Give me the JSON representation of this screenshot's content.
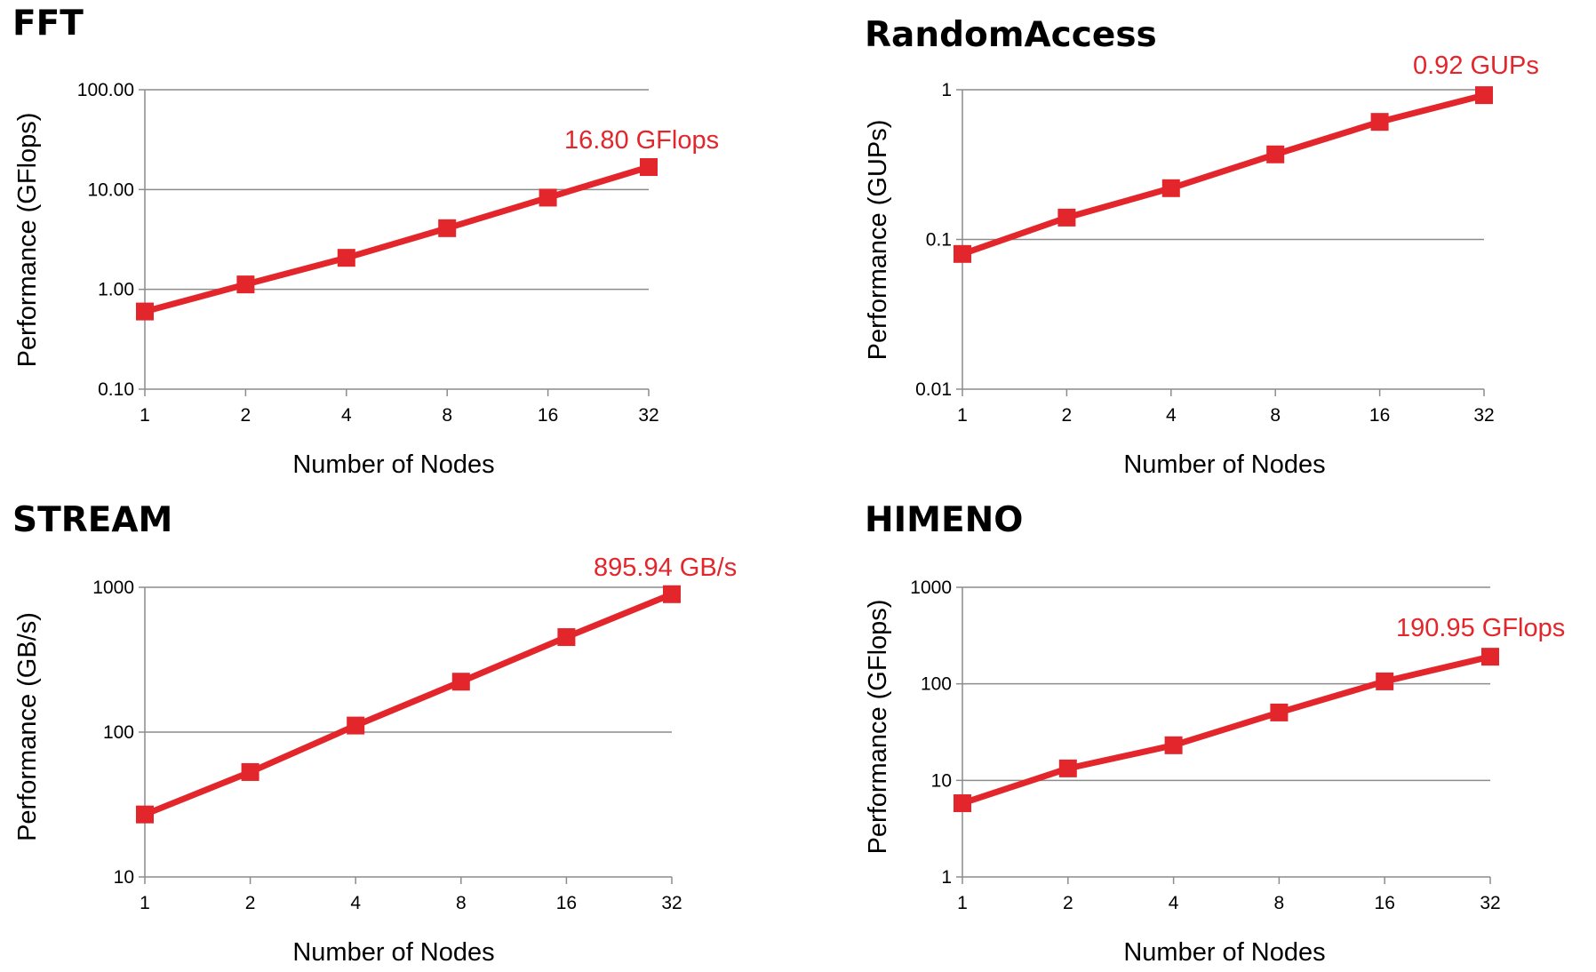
{
  "colors": {
    "series": "#e3262b",
    "grid": "#8c8c8c",
    "axis": "#8c8c8c"
  },
  "chart_data": [
    {
      "type": "line",
      "title": "FFT",
      "xlabel": "Number of Nodes",
      "ylabel": "Performance (GFlops)",
      "yscale": "log",
      "ylim": [
        0.1,
        100
      ],
      "ytick_labels": [
        "0.10",
        "1.00",
        "10.00",
        "100.00"
      ],
      "ytick_values": [
        0.1,
        1,
        10,
        100
      ],
      "x": [
        "1",
        "2",
        "4",
        "8",
        "16",
        "32"
      ],
      "series": [
        {
          "values": [
            0.6,
            1.12,
            2.07,
            4.1,
            8.3,
            16.8
          ]
        }
      ],
      "annotation": "16.80 GFlops",
      "grid": "horizontal"
    },
    {
      "type": "line",
      "title": "RandomAccess",
      "xlabel": "Number of Nodes",
      "ylabel": "Performance (GUPs)",
      "yscale": "log",
      "ylim": [
        0.01,
        1
      ],
      "ytick_labels": [
        "0.01",
        "0.1",
        "1"
      ],
      "ytick_values": [
        0.01,
        0.1,
        1
      ],
      "x": [
        "1",
        "2",
        "4",
        "8",
        "16",
        "32"
      ],
      "series": [
        {
          "values": [
            0.08,
            0.14,
            0.22,
            0.37,
            0.61,
            0.92
          ]
        }
      ],
      "annotation": "0.92 GUPs",
      "grid": "horizontal"
    },
    {
      "type": "line",
      "title": "STREAM",
      "xlabel": "Number of Nodes",
      "ylabel": "Performance (GB/s)",
      "yscale": "log",
      "ylim": [
        10,
        1000
      ],
      "ytick_labels": [
        "10",
        "100",
        "1000"
      ],
      "ytick_values": [
        10,
        100,
        1000
      ],
      "x": [
        "1",
        "2",
        "4",
        "8",
        "16",
        "32"
      ],
      "series": [
        {
          "values": [
            27,
            53,
            111,
            223,
            453,
            895.94
          ]
        }
      ],
      "annotation": "895.94 GB/s",
      "grid": "horizontal"
    },
    {
      "type": "line",
      "title": "HIMENO",
      "xlabel": "Number of Nodes",
      "ylabel": "Performance (GFlops)",
      "yscale": "log",
      "ylim": [
        1,
        1000
      ],
      "ytick_labels": [
        "1",
        "10",
        "100",
        "1000"
      ],
      "ytick_values": [
        1,
        10,
        100,
        1000
      ],
      "x": [
        "1",
        "2",
        "4",
        "8",
        "16",
        "32"
      ],
      "series": [
        {
          "values": [
            5.8,
            13.3,
            23.1,
            50.5,
            106,
            190.95
          ]
        }
      ],
      "annotation": "190.95 GFlops",
      "grid": "horizontal"
    }
  ]
}
